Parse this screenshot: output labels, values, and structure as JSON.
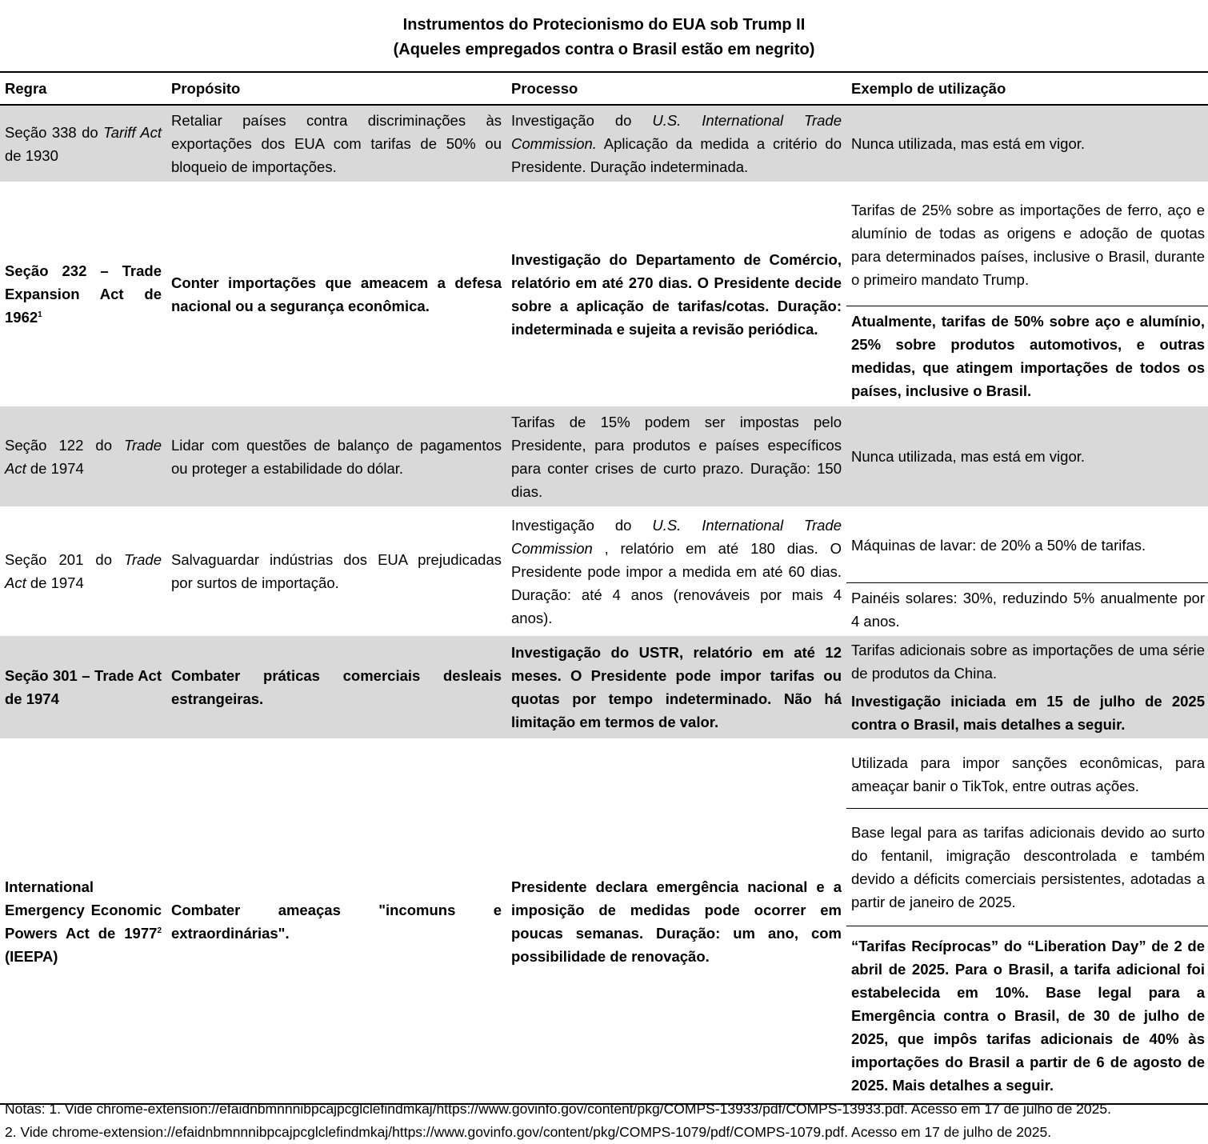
{
  "title": {
    "line1": "Instrumentos do Protecionismo do EUA sob Trump II",
    "line2": "(Aqueles empregados contra o Brasil estão em negrito)"
  },
  "headers": [
    "Regra",
    "Propósito",
    "Processo",
    "Exemplo de utilização"
  ],
  "rows": [
    {
      "shaded": true,
      "bold": false,
      "regra": [
        {
          "t": "Seção 338 do "
        },
        {
          "t": "Tariff Act",
          "i": true
        },
        {
          "t": " de 1930"
        }
      ],
      "proposito": [
        {
          "t": "Retaliar países contra discriminações às exportações dos EUA com tarifas de 50% ou bloqueio de importações."
        }
      ],
      "processo": [
        {
          "t": "Investigação do "
        },
        {
          "t": "U.S. International Trade Commission.",
          "i": true
        },
        {
          "t": " Aplicação da medida a critério do Presidente. Duração indeterminada."
        }
      ],
      "exemplos": [
        {
          "b": false,
          "seg": [
            {
              "t": "Nunca utilizada, mas está em vigor."
            }
          ]
        }
      ]
    },
    {
      "shaded": false,
      "bold": true,
      "regra": [
        {
          "t": "Seção 232 – Trade Expansion Act de 1962"
        },
        {
          "t": "1",
          "sup": true
        }
      ],
      "proposito": [
        {
          "t": "Conter importações que ameacem a defesa nacional ou a segurança econômica."
        }
      ],
      "processo": [
        {
          "t": "Investigação do Departamento de Comércio, relatório em até 270 dias. O Presidente decide sobre a aplicação de tarifas/cotas. Duração: indeterminada e sujeita a revisão periódica."
        }
      ],
      "exemplos": [
        {
          "b": false,
          "seg": [
            {
              "t": "Tarifas de 25% sobre as importações de ferro, aço e alumínio de todas as origens e adoção de quotas para determinados países, inclusive o Brasil, durante o primeiro mandato Trump."
            }
          ]
        },
        {
          "b": true,
          "seg": [
            {
              "t": "Atualmente, tarifas de 50% sobre aço e alumínio, 25% sobre produtos automotivos, e outras medidas, que atingem importações de todos os países, inclusive o Brasil."
            }
          ]
        }
      ]
    },
    {
      "shaded": true,
      "bold": false,
      "regra": [
        {
          "t": "Seção 122 do "
        },
        {
          "t": "Trade Act",
          "i": true
        },
        {
          "t": " de 1974"
        }
      ],
      "proposito": [
        {
          "t": "Lidar com questões de balanço de pagamentos ou proteger a estabilidade do dólar."
        }
      ],
      "processo": [
        {
          "t": "Tarifas de 15% podem ser impostas pelo Presidente, para produtos e países específicos para conter crises de curto prazo. Duração: 150 dias."
        }
      ],
      "exemplos": [
        {
          "b": false,
          "seg": [
            {
              "t": "Nunca utilizada, mas está em vigor."
            }
          ]
        }
      ]
    },
    {
      "shaded": false,
      "bold": false,
      "regra": [
        {
          "t": "Seção 201 do "
        },
        {
          "t": "Trade Act",
          "i": true
        },
        {
          "t": " de 1974"
        }
      ],
      "proposito": [
        {
          "t": "Salvaguardar indústrias dos EUA prejudicadas por surtos de importação."
        }
      ],
      "processo": [
        {
          "t": "Investigação do "
        },
        {
          "t": "U.S. International Trade Commission",
          "i": true
        },
        {
          "t": " , relatório em até 180 dias. O Presidente pode impor a medida em até 60 dias. Duração: até 4 anos (renováveis por mais 4 anos)."
        }
      ],
      "exemplos": [
        {
          "b": false,
          "seg": [
            {
              "t": "Máquinas de lavar: de 20% a 50% de tarifas."
            }
          ]
        },
        {
          "b": false,
          "seg": [
            {
              "t": "Painéis solares: 30%, reduzindo 5% anualmente por 4 anos."
            }
          ]
        }
      ]
    },
    {
      "shaded": true,
      "bold": true,
      "regra": [
        {
          "t": "Seção 301 – Trade Act de 1974"
        }
      ],
      "proposito": [
        {
          "t": "Combater práticas comerciais desleais estrangeiras."
        }
      ],
      "processo": [
        {
          "t": "Investigação do USTR, relatório em até 12 meses. O Presidente pode impor tarifas ou quotas por tempo indeterminado. Não há limitação em termos de valor."
        }
      ],
      "exemplos": [
        {
          "b": false,
          "seg": [
            {
              "t": "Tarifas adicionais sobre as importações de uma série de produtos da China."
            }
          ]
        },
        {
          "b": true,
          "seg": [
            {
              "t": "Investigação iniciada em 15 de julho de 2025 contra o Brasil, mais detalhes a seguir."
            }
          ]
        }
      ]
    },
    {
      "shaded": false,
      "bold": true,
      "regra": [
        {
          "t": "International Emergency Economic Powers Act de 1977"
        },
        {
          "t": "2",
          "sup": true
        },
        {
          "t": " (IEEPA)"
        }
      ],
      "proposito": [
        {
          "t": "Combater ameaças \"incomuns e extraordinárias\"."
        }
      ],
      "processo": [
        {
          "t": "Presidente declara emergência nacional e a imposição de medidas pode ocorrer em poucas semanas. Duração: um ano, com possibilidade de renovação."
        }
      ],
      "exemplos": [
        {
          "b": false,
          "seg": [
            {
              "t": "Utilizada para impor sanções econômicas, para ameaçar banir o TikTok, entre outras ações."
            }
          ]
        },
        {
          "b": false,
          "seg": [
            {
              "t": "Base legal para as tarifas adicionais devido ao surto do fentanil, imigração descontrolada e também devido a déficits comerciais persistentes, adotadas a partir de janeiro de 2025."
            }
          ]
        },
        {
          "b": true,
          "seg": [
            {
              "t": "“Tarifas Recíprocas” do “Liberation Day” de 2 de abril de 2025. Para o Brasil, a tarifa adicional foi estabelecida em 10%. Base legal para a Emergência contra o Brasil, de 30 de julho de 2025, que impôs tarifas adicionais de 40% às importações do Brasil a partir de 6 de agosto de 2025. Mais detalhes a seguir."
            }
          ]
        }
      ]
    }
  ],
  "notes": [
    "Notas: 1. Vide chrome-extension://efaidnbmnnnibpcajpcglclefindmkaj/https://www.govinfo.gov/content/pkg/COMPS-13933/pdf/COMPS-13933.pdf. Acesso em 17 de julho de 2025.",
    "2. Vide chrome-extension://efaidnbmnnnibpcajpcglclefindmkaj/https://www.govinfo.gov/content/pkg/COMPS-1079/pdf/COMPS-1079.pdf. Acesso em 17 de julho de 2025."
  ],
  "colors": {
    "shaded_row": "#d9d9d9",
    "rule": "#000000"
  }
}
